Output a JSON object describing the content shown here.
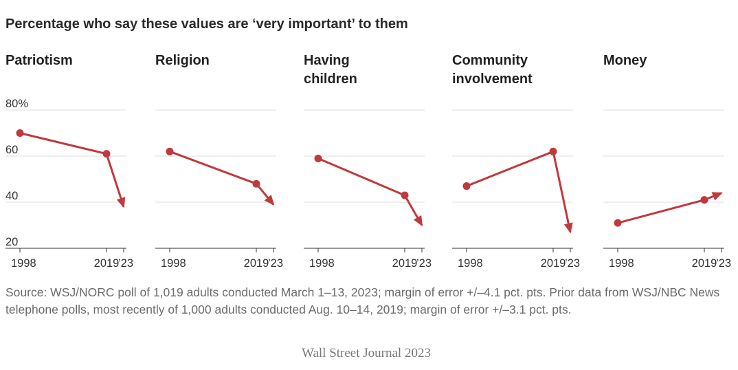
{
  "headline": "Percentage who say these values are ‘very important’ to them",
  "chart_data": [
    {
      "type": "line",
      "title": [
        "Patriotism"
      ],
      "x": [
        "1998",
        "2019",
        "’23"
      ],
      "values": [
        70,
        61,
        38
      ],
      "y_ticks": [
        "80%",
        "60",
        "40",
        "20"
      ],
      "ylim": [
        20,
        80
      ]
    },
    {
      "type": "line",
      "title": [
        "Religion"
      ],
      "x": [
        "1998",
        "2019",
        "’23"
      ],
      "values": [
        62,
        48,
        39
      ],
      "ylim": [
        20,
        80
      ]
    },
    {
      "type": "line",
      "title": [
        "Having",
        "children"
      ],
      "x": [
        "1998",
        "2019",
        "’23"
      ],
      "values": [
        59,
        43,
        30
      ],
      "ylim": [
        20,
        80
      ]
    },
    {
      "type": "line",
      "title": [
        "Community",
        "involvement"
      ],
      "x": [
        "1998",
        "2019",
        "’23"
      ],
      "values": [
        47,
        62,
        27
      ],
      "ylim": [
        20,
        80
      ]
    },
    {
      "type": "line",
      "title": [
        "Money"
      ],
      "x": [
        "1998",
        "2019",
        "’23"
      ],
      "values": [
        31,
        41,
        44
      ],
      "ylim": [
        20,
        80
      ]
    }
  ],
  "colors": {
    "series": "#c0393b",
    "gridline": "#dcdcdc",
    "axis": "#333333"
  },
  "source": "Source: WSJ/NORC poll of 1,019 adults conducted March 1–13, 2023; margin of error +/–4.1 pct. pts. Prior data from WSJ/NBC News telephone polls, most recently of 1,000 adults conducted Aug. 10–14, 2019; margin of error +/–3.1 pct. pts.",
  "credit": "Wall Street Journal 2023"
}
